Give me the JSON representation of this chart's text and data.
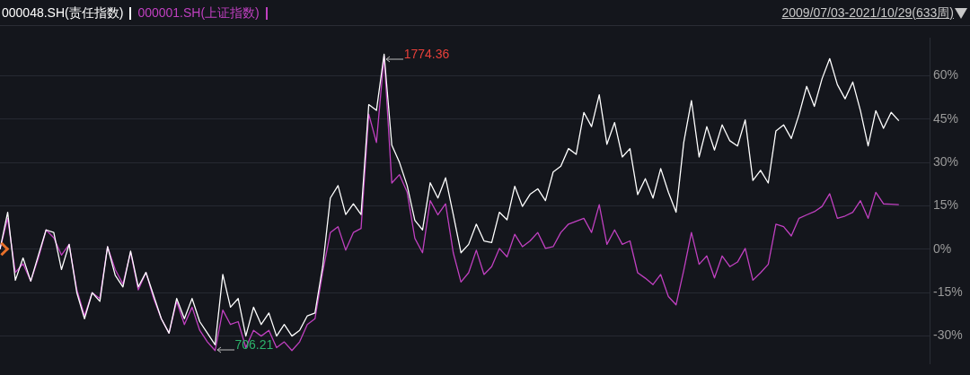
{
  "chart_data": {
    "type": "line",
    "subtitle": "2009/07/03-2021/10/29(633周)",
    "grid": "y",
    "tick_labels": "y",
    "marker": "none",
    "line_style": "solid",
    "ylim": [
      -39.6,
      73
    ],
    "yticks": [
      {
        "value": 60,
        "label": "60%"
      },
      {
        "value": 45,
        "label": "45%"
      },
      {
        "value": 30,
        "label": "30%"
      },
      {
        "value": 15,
        "label": "15%"
      },
      {
        "value": 0,
        "label": "0%"
      },
      {
        "value": -15,
        "label": "-15%"
      },
      {
        "value": -30,
        "label": "-30%"
      }
    ],
    "annotations": [
      "1774.36",
      "706.21"
    ],
    "legend": "top left",
    "categories": [
      null,
      null,
      null,
      null,
      null,
      null,
      null,
      null,
      null,
      null,
      null,
      null,
      null,
      null,
      null,
      null,
      null,
      null,
      null,
      null,
      null,
      null,
      null,
      null,
      null,
      null,
      null,
      null,
      null,
      null,
      null,
      null,
      null,
      null,
      null,
      null,
      null,
      null,
      null,
      null,
      null,
      null,
      null,
      null,
      null,
      null,
      null,
      null,
      null,
      null,
      null,
      null,
      null,
      null,
      null,
      null,
      null,
      null,
      null,
      null,
      null,
      null,
      null,
      null,
      null,
      null,
      null,
      null,
      null,
      null,
      null,
      null,
      null,
      null,
      null,
      null,
      null,
      null,
      null,
      null,
      null,
      null,
      null,
      null,
      null,
      null,
      null,
      null,
      null,
      null,
      null,
      null,
      null,
      null,
      null,
      null,
      null,
      null,
      null,
      null,
      null,
      null,
      null,
      null,
      null,
      null,
      null,
      null,
      null,
      null,
      null,
      null,
      null,
      null,
      null,
      null,
      null,
      null,
      null,
      null,
      null,
      null
    ],
    "series": [
      {
        "name": "000048.SH(责任指数)",
        "color": "#ffffff",
        "values": [
          0,
          12.8,
          -10.7,
          -3,
          -11,
          -2,
          6.7,
          5.8,
          -7,
          1.7,
          -15,
          -24,
          -15,
          -18,
          0.9,
          -9,
          -13,
          -0.6,
          -13,
          -8,
          -16,
          -24,
          -29,
          -17,
          -24,
          -17,
          -25,
          -29,
          -33,
          -8.7,
          -20,
          -17,
          -30,
          -20,
          -26,
          -22,
          -30,
          -26,
          -30,
          -28,
          -23,
          -22,
          -6,
          17.7,
          22,
          12,
          15.7,
          12,
          50,
          48,
          67.4,
          36,
          30,
          22,
          10,
          6.7,
          23,
          17.7,
          24.7,
          12,
          -1.2,
          1.7,
          8.7,
          2.9,
          2.3,
          12.8,
          10.2,
          21.8,
          14.8,
          19,
          20.9,
          16.8,
          26.7,
          28.7,
          34.8,
          32.8,
          47.3,
          42.4,
          53.4,
          36.3,
          43.8,
          31.9,
          34.8,
          18.9,
          24.4,
          17.7,
          27.9,
          19.7,
          12.8,
          36.9,
          51.4,
          31.9,
          42.4,
          34.3,
          43,
          37.5,
          35.7,
          44.7,
          23.8,
          27.3,
          22.9,
          40.9,
          43,
          38.3,
          46.5,
          56.3,
          49.4,
          58.9,
          65.9,
          56.9,
          52,
          57.8,
          47.9,
          35.7,
          47.9,
          41.8,
          47.3,
          44.4,
          null,
          null,
          null,
          null
        ]
      },
      {
        "name": "000001.SH(上证指数)",
        "color": "#c040c0",
        "values": [
          0,
          10.7,
          -8,
          -5,
          -11,
          -3,
          6.7,
          4,
          -2,
          1.7,
          -14,
          -23,
          -15,
          -17,
          0.9,
          -7,
          -12,
          -1,
          -14,
          -8,
          -17,
          -24,
          -29,
          -18,
          -26,
          -20,
          -28,
          -32,
          -35,
          -21,
          -26,
          -25,
          -34,
          -28,
          -30,
          -28,
          -34,
          -32,
          -35,
          -32,
          -26,
          -24,
          -8,
          5.8,
          7.8,
          -0.3,
          5.8,
          7.2,
          46.7,
          36.9,
          66.8,
          22.9,
          25.8,
          19.7,
          3.8,
          -1.2,
          16.8,
          11.9,
          15.7,
          -1.2,
          -11.3,
          -8.1,
          -0.3,
          -8.7,
          -6,
          0.3,
          -2.6,
          5.2,
          0.9,
          2.9,
          5.8,
          0.3,
          0.9,
          5.8,
          8.7,
          9.7,
          10.7,
          5.8,
          15.4,
          1.7,
          6.7,
          1.7,
          2.9,
          -8.1,
          -10,
          -12.2,
          -8.7,
          -16.3,
          -19.2,
          -7.3,
          5.8,
          -5.2,
          -2.3,
          -9.9,
          -2.3,
          -6,
          -4.4,
          0.3,
          -10.7,
          -8.1,
          -5.2,
          8.7,
          7.8,
          4.6,
          10.7,
          11.9,
          13,
          14.8,
          19.2,
          10.7,
          11.5,
          12.8,
          16.8,
          10.7,
          19.7,
          15.7,
          15.6,
          15.4,
          null,
          null,
          null,
          null
        ]
      }
    ]
  }
}
